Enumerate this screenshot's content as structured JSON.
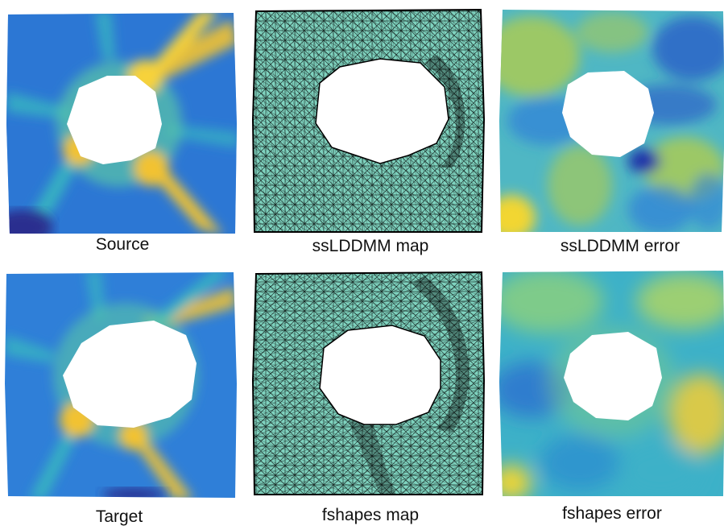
{
  "figure": {
    "panels": [
      {
        "id": "source",
        "caption": "Source",
        "kind": "field",
        "colors": {
          "base": "#2f7fd8",
          "hot": "#f2c232",
          "mid": "#39b8c0",
          "dark": "#2a2f8f"
        }
      },
      {
        "id": "sslddmm-map",
        "caption": "ssLDDMM map",
        "kind": "mesh",
        "colors": {
          "fill": "#7fd3bf",
          "line": "#000000"
        }
      },
      {
        "id": "sslddmm-error",
        "caption": "ssLDDMM error",
        "kind": "field",
        "colors": {
          "base": "#4fb7c4",
          "hot": "#f2d632",
          "mid": "#9cc866",
          "dark": "#2452c9"
        }
      },
      {
        "id": "target",
        "caption": "Target",
        "kind": "field",
        "colors": {
          "base": "#2f7fd8",
          "hot": "#f2c232",
          "mid": "#39b8c0",
          "dark": "#2a2f8f"
        }
      },
      {
        "id": "fshapes-map",
        "caption": "fshapes map",
        "kind": "mesh",
        "colors": {
          "fill": "#7fd3bf",
          "line": "#000000"
        }
      },
      {
        "id": "fshapes-error",
        "caption": "fshapes error",
        "kind": "field",
        "colors": {
          "base": "#3db1c8",
          "hot": "#d9c94a",
          "mid": "#7ecb8a",
          "dark": "#2b6fd0"
        }
      }
    ]
  }
}
